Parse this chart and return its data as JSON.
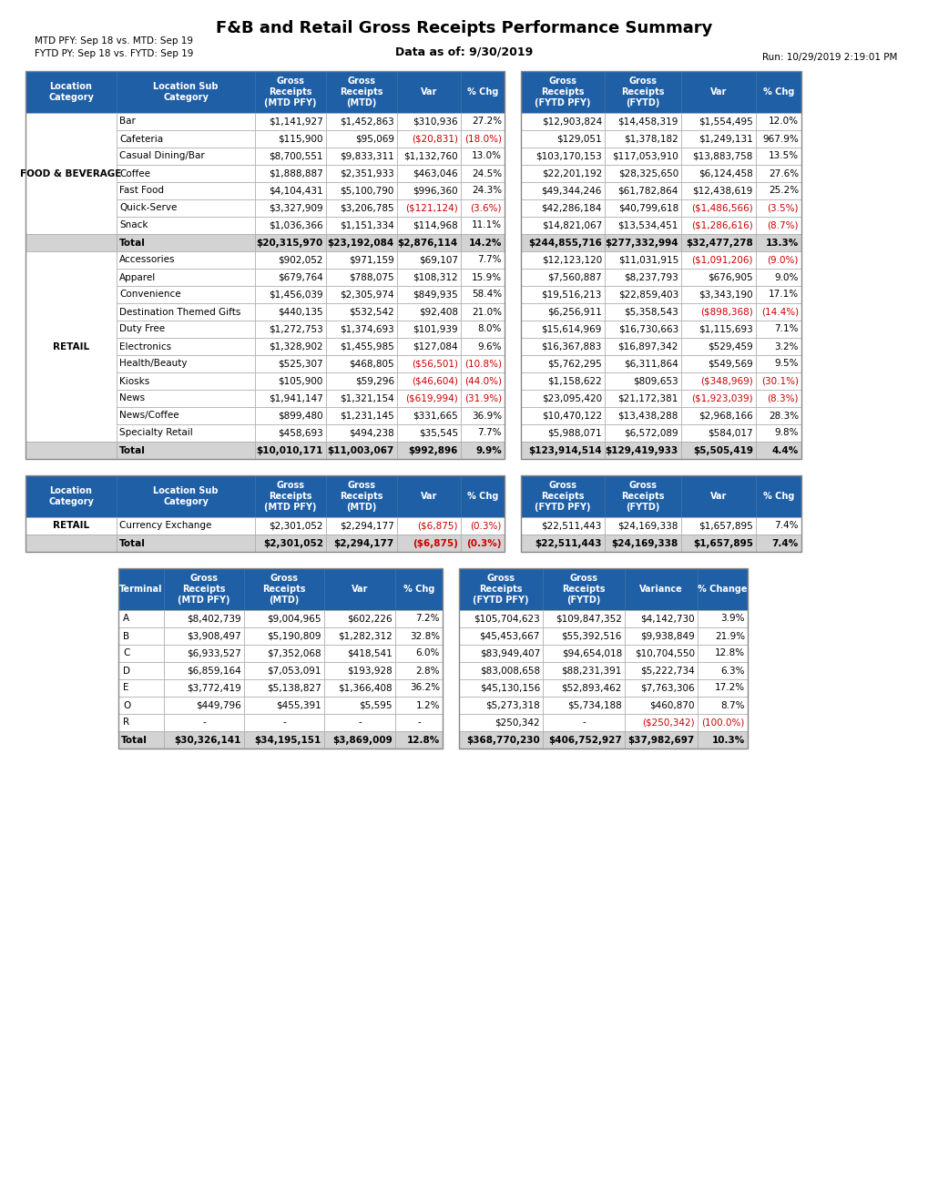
{
  "title": "F&B and Retail Gross Receipts Performance Summary",
  "subtitle": "Data as of: 9/30/2019",
  "left_note1": "MTD PFY: Sep 18 vs. MTD: Sep 19",
  "left_note2": "FYTD PY: Sep 18 vs. FYTD: Sep 19",
  "right_note": "Run: 10/29/2019 2:19:01 PM",
  "header_bg": "#1F5FA6",
  "header_fg": "#FFFFFF",
  "total_bg": "#D3D3D3",
  "row_bg": "#FFFFFF",
  "neg_color": "#CC0000",
  "pos_color": "#000000",
  "table1_data": [
    [
      "FOOD & BEVERAGE",
      "Bar",
      "$1,141,927",
      "$1,452,863",
      "$310,936",
      "27.2%",
      "$12,903,824",
      "$14,458,319",
      "$1,554,495",
      "12.0%"
    ],
    [
      "",
      "Cafeteria",
      "$115,900",
      "$95,069",
      "($20,831)",
      "(18.0%)",
      "$129,051",
      "$1,378,182",
      "$1,249,131",
      "967.9%"
    ],
    [
      "",
      "Casual Dining/Bar",
      "$8,700,551",
      "$9,833,311",
      "$1,132,760",
      "13.0%",
      "$103,170,153",
      "$117,053,910",
      "$13,883,758",
      "13.5%"
    ],
    [
      "",
      "Coffee",
      "$1,888,887",
      "$2,351,933",
      "$463,046",
      "24.5%",
      "$22,201,192",
      "$28,325,650",
      "$6,124,458",
      "27.6%"
    ],
    [
      "",
      "Fast Food",
      "$4,104,431",
      "$5,100,790",
      "$996,360",
      "24.3%",
      "$49,344,246",
      "$61,782,864",
      "$12,438,619",
      "25.2%"
    ],
    [
      "",
      "Quick-Serve",
      "$3,327,909",
      "$3,206,785",
      "($121,124)",
      "(3.6%)",
      "$42,286,184",
      "$40,799,618",
      "($1,486,566)",
      "(3.5%)"
    ],
    [
      "",
      "Snack",
      "$1,036,366",
      "$1,151,334",
      "$114,968",
      "11.1%",
      "$14,821,067",
      "$13,534,451",
      "($1,286,616)",
      "(8.7%)"
    ],
    [
      "TOTAL",
      "Total",
      "$20,315,970",
      "$23,192,084",
      "$2,876,114",
      "14.2%",
      "$244,855,716",
      "$277,332,994",
      "$32,477,278",
      "13.3%"
    ],
    [
      "RETAIL",
      "Accessories",
      "$902,052",
      "$971,159",
      "$69,107",
      "7.7%",
      "$12,123,120",
      "$11,031,915",
      "($1,091,206)",
      "(9.0%)"
    ],
    [
      "",
      "Apparel",
      "$679,764",
      "$788,075",
      "$108,312",
      "15.9%",
      "$7,560,887",
      "$8,237,793",
      "$676,905",
      "9.0%"
    ],
    [
      "",
      "Convenience",
      "$1,456,039",
      "$2,305,974",
      "$849,935",
      "58.4%",
      "$19,516,213",
      "$22,859,403",
      "$3,343,190",
      "17.1%"
    ],
    [
      "",
      "Destination Themed Gifts",
      "$440,135",
      "$532,542",
      "$92,408",
      "21.0%",
      "$6,256,911",
      "$5,358,543",
      "($898,368)",
      "(14.4%)"
    ],
    [
      "",
      "Duty Free",
      "$1,272,753",
      "$1,374,693",
      "$101,939",
      "8.0%",
      "$15,614,969",
      "$16,730,663",
      "$1,115,693",
      "7.1%"
    ],
    [
      "",
      "Electronics",
      "$1,328,902",
      "$1,455,985",
      "$127,084",
      "9.6%",
      "$16,367,883",
      "$16,897,342",
      "$529,459",
      "3.2%"
    ],
    [
      "",
      "Health/Beauty",
      "$525,307",
      "$468,805",
      "($56,501)",
      "(10.8%)",
      "$5,762,295",
      "$6,311,864",
      "$549,569",
      "9.5%"
    ],
    [
      "",
      "Kiosks",
      "$105,900",
      "$59,296",
      "($46,604)",
      "(44.0%)",
      "$1,158,622",
      "$809,653",
      "($348,969)",
      "(30.1%)"
    ],
    [
      "",
      "News",
      "$1,941,147",
      "$1,321,154",
      "($619,994)",
      "(31.9%)",
      "$23,095,420",
      "$21,172,381",
      "($1,923,039)",
      "(8.3%)"
    ],
    [
      "",
      "News/Coffee",
      "$899,480",
      "$1,231,145",
      "$331,665",
      "36.9%",
      "$10,470,122",
      "$13,438,288",
      "$2,968,166",
      "28.3%"
    ],
    [
      "",
      "Specialty Retail",
      "$458,693",
      "$494,238",
      "$35,545",
      "7.7%",
      "$5,988,071",
      "$6,572,089",
      "$584,017",
      "9.8%"
    ],
    [
      "TOTAL",
      "Total",
      "$10,010,171",
      "$11,003,067",
      "$992,896",
      "9.9%",
      "$123,914,514",
      "$129,419,933",
      "$5,505,419",
      "4.4%"
    ]
  ],
  "table2_data": [
    [
      "RETAIL",
      "Currency Exchange",
      "$2,301,052",
      "$2,294,177",
      "($6,875)",
      "(0.3%)",
      "$22,511,443",
      "$24,169,338",
      "$1,657,895",
      "7.4%"
    ],
    [
      "TOTAL",
      "Total",
      "$2,301,052",
      "$2,294,177",
      "($6,875)",
      "(0.3%)",
      "$22,511,443",
      "$24,169,338",
      "$1,657,895",
      "7.4%"
    ]
  ],
  "table3_data": [
    [
      "A",
      "$8,402,739",
      "$9,004,965",
      "$602,226",
      "7.2%",
      "$105,704,623",
      "$109,847,352",
      "$4,142,730",
      "3.9%"
    ],
    [
      "B",
      "$3,908,497",
      "$5,190,809",
      "$1,282,312",
      "32.8%",
      "$45,453,667",
      "$55,392,516",
      "$9,938,849",
      "21.9%"
    ],
    [
      "C",
      "$6,933,527",
      "$7,352,068",
      "$418,541",
      "6.0%",
      "$83,949,407",
      "$94,654,018",
      "$10,704,550",
      "12.8%"
    ],
    [
      "D",
      "$6,859,164",
      "$7,053,091",
      "$193,928",
      "2.8%",
      "$83,008,658",
      "$88,231,391",
      "$5,222,734",
      "6.3%"
    ],
    [
      "E",
      "$3,772,419",
      "$5,138,827",
      "$1,366,408",
      "36.2%",
      "$45,130,156",
      "$52,893,462",
      "$7,763,306",
      "17.2%"
    ],
    [
      "O",
      "$449,796",
      "$455,391",
      "$5,595",
      "1.2%",
      "$5,273,318",
      "$5,734,188",
      "$460,870",
      "8.7%"
    ],
    [
      "R",
      "-",
      "-",
      "-",
      "-",
      "$250,342",
      "-",
      "($250,342)",
      "(100.0%)"
    ],
    [
      "TOTAL",
      "Total",
      "$30,326,141",
      "$34,195,151",
      "$3,869,009",
      "12.8%",
      "$368,770,230",
      "$406,752,927",
      "$37,982,697",
      "10.3%"
    ]
  ]
}
